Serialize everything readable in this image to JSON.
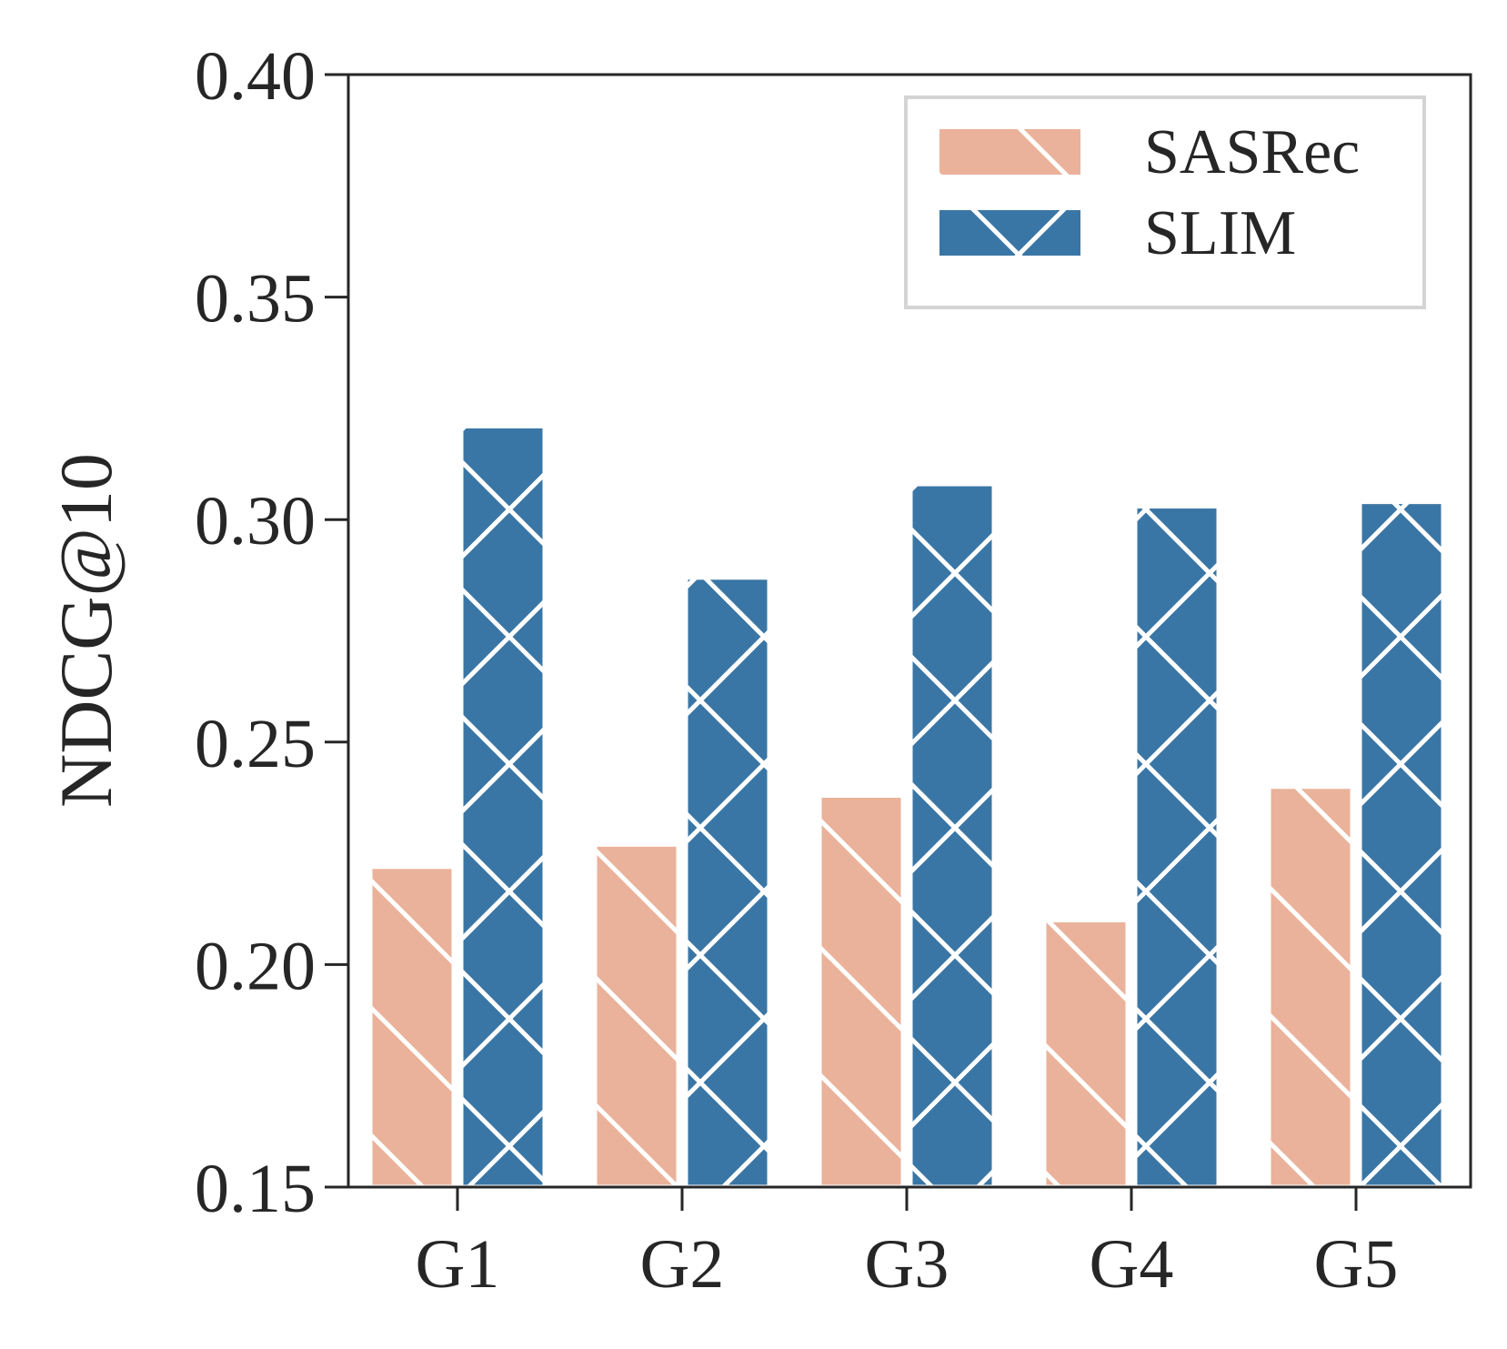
{
  "chart_data": {
    "type": "bar",
    "title": "",
    "xlabel": "",
    "ylabel": "NDCG@10",
    "ylim": [
      0.15,
      0.4
    ],
    "yticks": [
      0.15,
      0.2,
      0.25,
      0.3,
      0.35,
      0.4
    ],
    "ytick_labels": [
      "0.15",
      "0.20",
      "0.25",
      "0.30",
      "0.35",
      "0.40"
    ],
    "categories": [
      "G1",
      "G2",
      "G3",
      "G4",
      "G5"
    ],
    "series": [
      {
        "name": "SASRec",
        "color": "#EAB29A",
        "hatch": "diagonal",
        "values": [
          0.222,
          0.227,
          0.238,
          0.21,
          0.24
        ]
      },
      {
        "name": "SLIM",
        "color": "#3A76A5",
        "hatch": "cross",
        "values": [
          0.321,
          0.287,
          0.308,
          0.303,
          0.304
        ]
      }
    ],
    "legend_position": "top-right",
    "grid": false
  }
}
